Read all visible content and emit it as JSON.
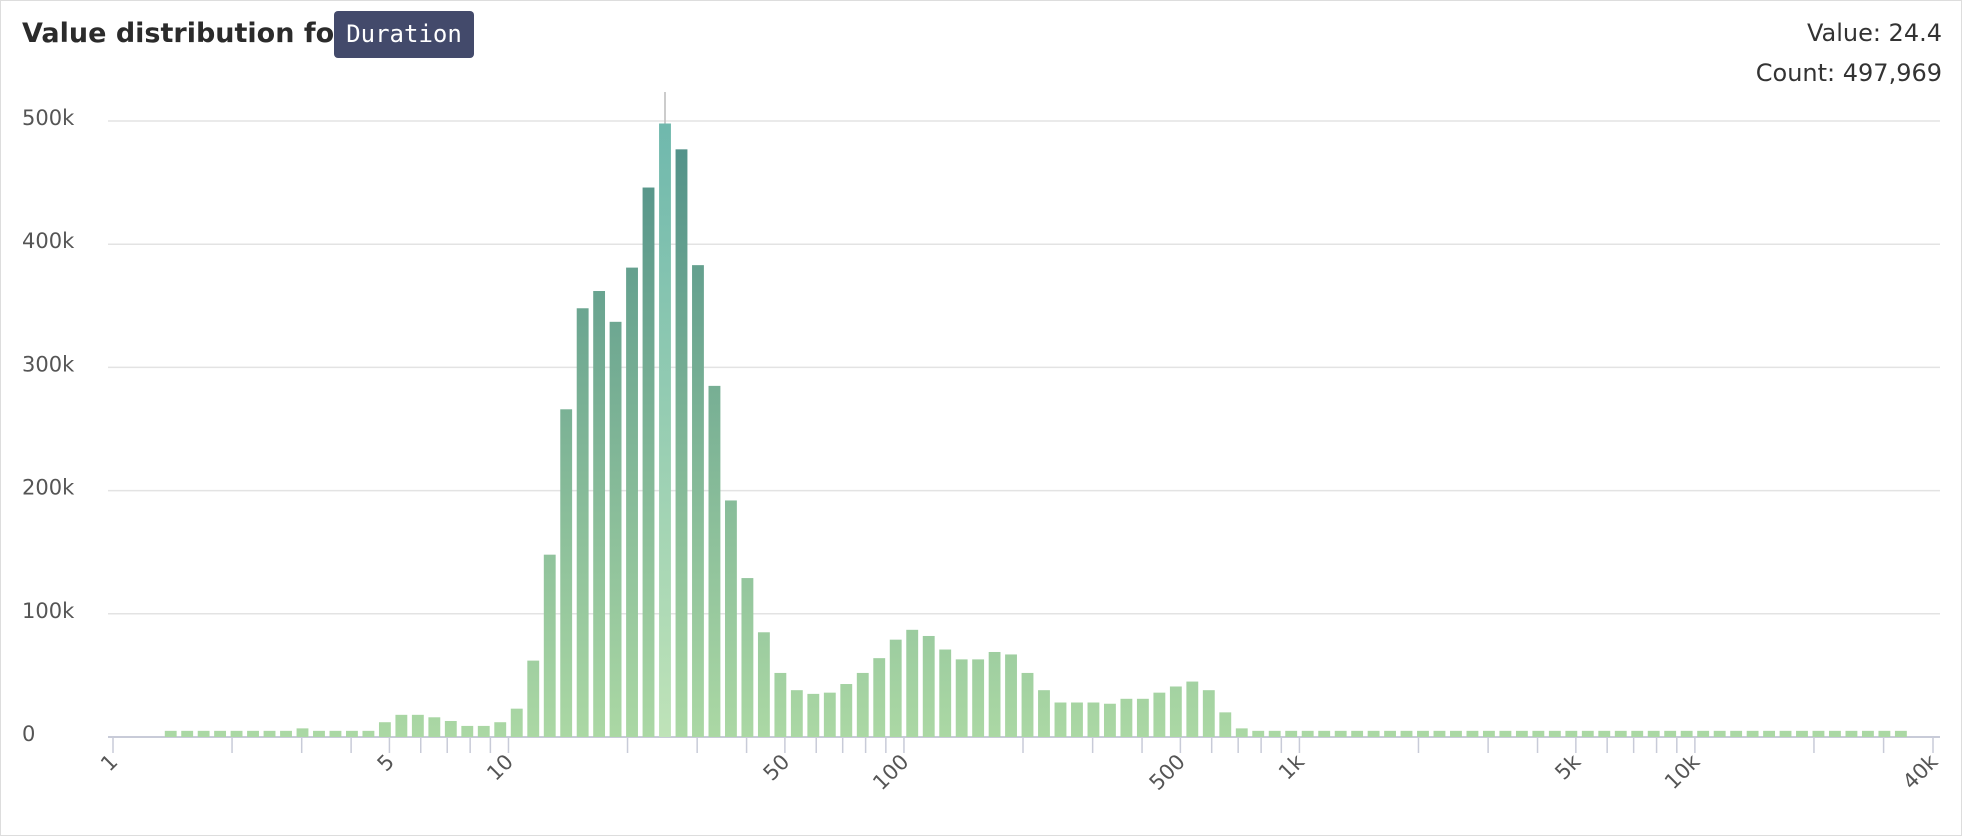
{
  "chart_data": {
    "type": "histogram",
    "title": "Value distribution for",
    "field": "Duration",
    "tooltip": [
      "Value: 24.4",
      "Count: 497,969"
    ],
    "log_x": true,
    "grid": true,
    "colors": [
      "#4f8f88",
      "#abd8a4"
    ],
    "highlight_colors": [
      "#6fb8ad",
      "#bfe3b8"
    ],
    "highlight": 30,
    "bins": [
      1.334,
      1.468,
      1.616,
      1.778,
      1.957,
      2.154,
      2.371,
      2.61,
      2.873,
      3.162,
      3.481,
      3.831,
      4.217,
      4.642,
      5.109,
      5.623,
      6.19,
      6.813,
      7.499,
      8.254,
      9.085,
      10,
      11.01,
      12.12,
      13.34,
      14.68,
      16.16,
      17.78,
      19.57,
      21.54,
      23.71,
      26.1,
      28.73,
      31.62,
      34.81,
      38.31,
      42.17,
      46.42,
      51.09,
      56.23,
      61.9,
      68.13,
      74.99,
      82.54,
      90.85,
      100,
      110.1,
      121.2,
      133.4,
      146.8,
      161.6,
      177.8,
      195.7,
      215.4,
      237.1,
      261,
      287.3,
      316.2,
      348.1,
      383.1,
      421.7,
      464.2,
      510.9,
      562.3,
      619,
      681.3,
      749.9,
      825.4,
      908.5,
      1000,
      1101,
      1212,
      1334,
      1468,
      1616,
      1778,
      1957,
      2154,
      2371,
      2610,
      2873,
      3162,
      3481,
      3831,
      4217,
      4642,
      5109,
      5623,
      6190,
      6813,
      7499,
      8254,
      9085,
      10000,
      11010,
      12120,
      13340,
      14680,
      16160,
      17780,
      19570,
      21540,
      23710,
      26100,
      28730,
      31620,
      34810
    ],
    "counts": [
      5000,
      5000,
      5000,
      5000,
      5000,
      5000,
      5000,
      5000,
      7000,
      5000,
      5000,
      5000,
      5000,
      12000,
      18000,
      18000,
      16000,
      13000,
      9000,
      9000,
      12000,
      23000,
      62000,
      148000,
      266000,
      348000,
      362000,
      337000,
      381000,
      446000,
      497969,
      477000,
      383000,
      285000,
      192000,
      129000,
      85000,
      52000,
      38000,
      35000,
      36000,
      43000,
      52000,
      64000,
      79000,
      87000,
      82000,
      71000,
      63000,
      63000,
      69000,
      67000,
      52000,
      38000,
      28000,
      28000,
      28000,
      27000,
      31000,
      31000,
      36000,
      41000,
      45000,
      38000,
      20000,
      7000,
      5000,
      5000,
      5000,
      5000,
      5000,
      5000,
      5000,
      5000,
      5000,
      5000,
      5000,
      5000,
      5000,
      5000,
      5000,
      5000,
      5000,
      5000,
      5000,
      5000,
      5000,
      5000,
      5000,
      5000,
      5000,
      5000,
      5000,
      5000,
      5000,
      5000,
      5000,
      5000,
      5000,
      5000,
      5000,
      5000,
      5000,
      5000,
      5000,
      5000
    ],
    "xlim": [
      1,
      40000
    ],
    "xticks": [
      1,
      5,
      10,
      50,
      100,
      500,
      {
        "value": 1000,
        "label": "1k"
      },
      {
        "value": 5000,
        "label": "5k"
      },
      {
        "value": 10000,
        "label": "10k"
      },
      {
        "value": 40000,
        "label": "40k"
      }
    ],
    "xminorticks": [
      2,
      3,
      4,
      6,
      7,
      8,
      9,
      20,
      30,
      40,
      60,
      70,
      80,
      90,
      200,
      300,
      400,
      600,
      700,
      800,
      900,
      2000,
      3000,
      4000,
      6000,
      7000,
      8000,
      9000,
      20000,
      30000
    ],
    "ylim": [
      0,
      500000
    ],
    "yticks": [
      0,
      {
        "value": 100000,
        "label": "100k"
      },
      {
        "value": 200000,
        "label": "200k"
      },
      {
        "value": 300000,
        "label": "300k"
      },
      {
        "value": 400000,
        "label": "400k"
      },
      {
        "value": 500000,
        "label": "500k"
      }
    ]
  }
}
